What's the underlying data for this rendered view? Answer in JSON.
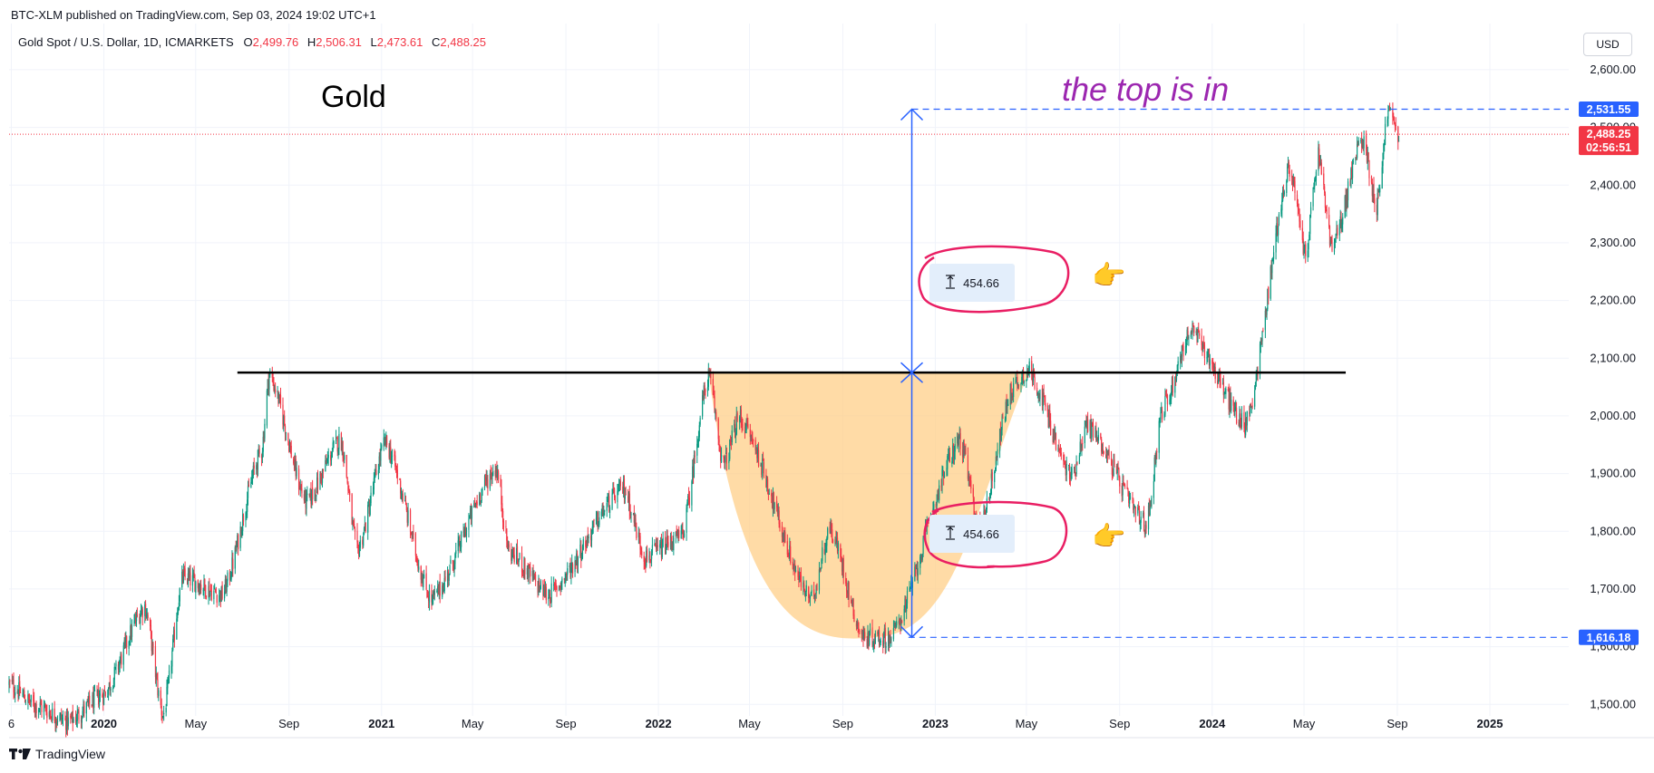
{
  "header": {
    "published": "BTC-XLM published on TradingView.com, Sep 03, 2024 19:02 UTC+1",
    "symbol": "Gold Spot / U.S. Dollar, 1D, ICMARKETS",
    "ohlc": [
      {
        "key": "O",
        "value": "2,499.76"
      },
      {
        "key": "H",
        "value": "2,506.31"
      },
      {
        "key": "L",
        "value": "2,473.61"
      },
      {
        "key": "C",
        "value": "2,488.25"
      }
    ],
    "currency_button": "USD"
  },
  "footer": {
    "brand": "TradingView"
  },
  "annotations": {
    "title": "Gold",
    "note": "the top is in",
    "measure_upper": "454.66",
    "measure_lower": "454.66",
    "pointer_emoji": "👉"
  },
  "price_tags": {
    "top_level": "2,531.55",
    "last_price": "2,488.25",
    "countdown": "02:56:51",
    "bottom_level": "1,616.18"
  },
  "colors": {
    "up": "#089981",
    "down": "#f23645",
    "level_line": "#2962ff",
    "neckline": "#000000",
    "cup_fill": "#ffcc80",
    "circle": "#e91e63",
    "note": "#9c27b0"
  },
  "chart_data": {
    "type": "candlestick",
    "series_name": "Gold Spot / U.S. Dollar",
    "timeframe": "1D",
    "y_axis": {
      "ticks": [
        1500,
        1600,
        1700,
        1800,
        1900,
        2000,
        2100,
        2200,
        2300,
        2400,
        2500,
        2600
      ],
      "tick_labels": [
        "1,500.00",
        "1,600.00",
        "1,700.00",
        "1,800.00",
        "1,900.00",
        "2,000.00",
        "2,100.00",
        "2,200.00",
        "2,300.00",
        "2,400.00",
        "2,500.00",
        "2,600.00"
      ],
      "range": [
        1480,
        2680
      ]
    },
    "x_axis": {
      "range": [
        "2019-08-29",
        "2025-04-15"
      ],
      "ticks": [
        {
          "date": "2019-09-01",
          "label": "6"
        },
        {
          "date": "2020-01-01",
          "label": "2020"
        },
        {
          "date": "2020-05-01",
          "label": "May"
        },
        {
          "date": "2020-09-01",
          "label": "Sep"
        },
        {
          "date": "2021-01-01",
          "label": "2021"
        },
        {
          "date": "2021-05-01",
          "label": "May"
        },
        {
          "date": "2021-09-01",
          "label": "Sep"
        },
        {
          "date": "2022-01-01",
          "label": "2022"
        },
        {
          "date": "2022-05-01",
          "label": "May"
        },
        {
          "date": "2022-09-01",
          "label": "Sep"
        },
        {
          "date": "2023-01-01",
          "label": "2023"
        },
        {
          "date": "2023-05-01",
          "label": "May"
        },
        {
          "date": "2023-09-01",
          "label": "Sep"
        },
        {
          "date": "2024-01-01",
          "label": "2024"
        },
        {
          "date": "2024-05-01",
          "label": "May"
        },
        {
          "date": "2024-09-01",
          "label": "Sep"
        },
        {
          "date": "2025-01-01",
          "label": "2025"
        }
      ]
    },
    "price_path": [
      [
        "2019-08-29",
        1535
      ],
      [
        "2019-10-01",
        1500
      ],
      [
        "2019-11-15",
        1470
      ],
      [
        "2019-12-31",
        1517
      ],
      [
        "2020-02-24",
        1670
      ],
      [
        "2020-03-19",
        1480
      ],
      [
        "2020-04-14",
        1720
      ],
      [
        "2020-06-05",
        1690
      ],
      [
        "2020-07-27",
        1940
      ],
      [
        "2020-08-06",
        2072
      ],
      [
        "2020-09-24",
        1850
      ],
      [
        "2020-11-08",
        1960
      ],
      [
        "2020-11-30",
        1765
      ],
      [
        "2021-01-06",
        1955
      ],
      [
        "2021-03-08",
        1680
      ],
      [
        "2021-06-01",
        1910
      ],
      [
        "2021-06-18",
        1765
      ],
      [
        "2021-08-09",
        1690
      ],
      [
        "2021-11-16",
        1875
      ],
      [
        "2021-12-15",
        1755
      ],
      [
        "2022-01-31",
        1790
      ],
      [
        "2022-03-08",
        2070
      ],
      [
        "2022-03-28",
        1915
      ],
      [
        "2022-04-18",
        1998
      ],
      [
        "2022-07-21",
        1680
      ],
      [
        "2022-08-15",
        1805
      ],
      [
        "2022-09-28",
        1616
      ],
      [
        "2022-11-03",
        1616
      ],
      [
        "2023-02-02",
        1960
      ],
      [
        "2023-02-28",
        1805
      ],
      [
        "2023-04-13",
        2050
      ],
      [
        "2023-05-04",
        2080
      ],
      [
        "2023-06-29",
        1895
      ],
      [
        "2023-07-20",
        1985
      ],
      [
        "2023-10-06",
        1810
      ],
      [
        "2023-10-27",
        2010
      ],
      [
        "2023-12-04",
        2148
      ],
      [
        "2024-02-14",
        1984
      ],
      [
        "2024-04-12",
        2431
      ],
      [
        "2024-05-03",
        2280
      ],
      [
        "2024-05-20",
        2450
      ],
      [
        "2024-06-07",
        2290
      ],
      [
        "2024-07-17",
        2483
      ],
      [
        "2024-08-05",
        2365
      ],
      [
        "2024-08-20",
        2531
      ],
      [
        "2024-09-03",
        2488
      ]
    ],
    "drawings": {
      "neckline_price": 2075,
      "neckline_from": "2020-06-25",
      "neckline_to": "2024-06-25",
      "measure_top_price": 2531.55,
      "measure_bottom_price": 1616.18,
      "measure_date": "2022-12-01",
      "measured_move": 454.66,
      "last_price": 2488.25
    }
  }
}
